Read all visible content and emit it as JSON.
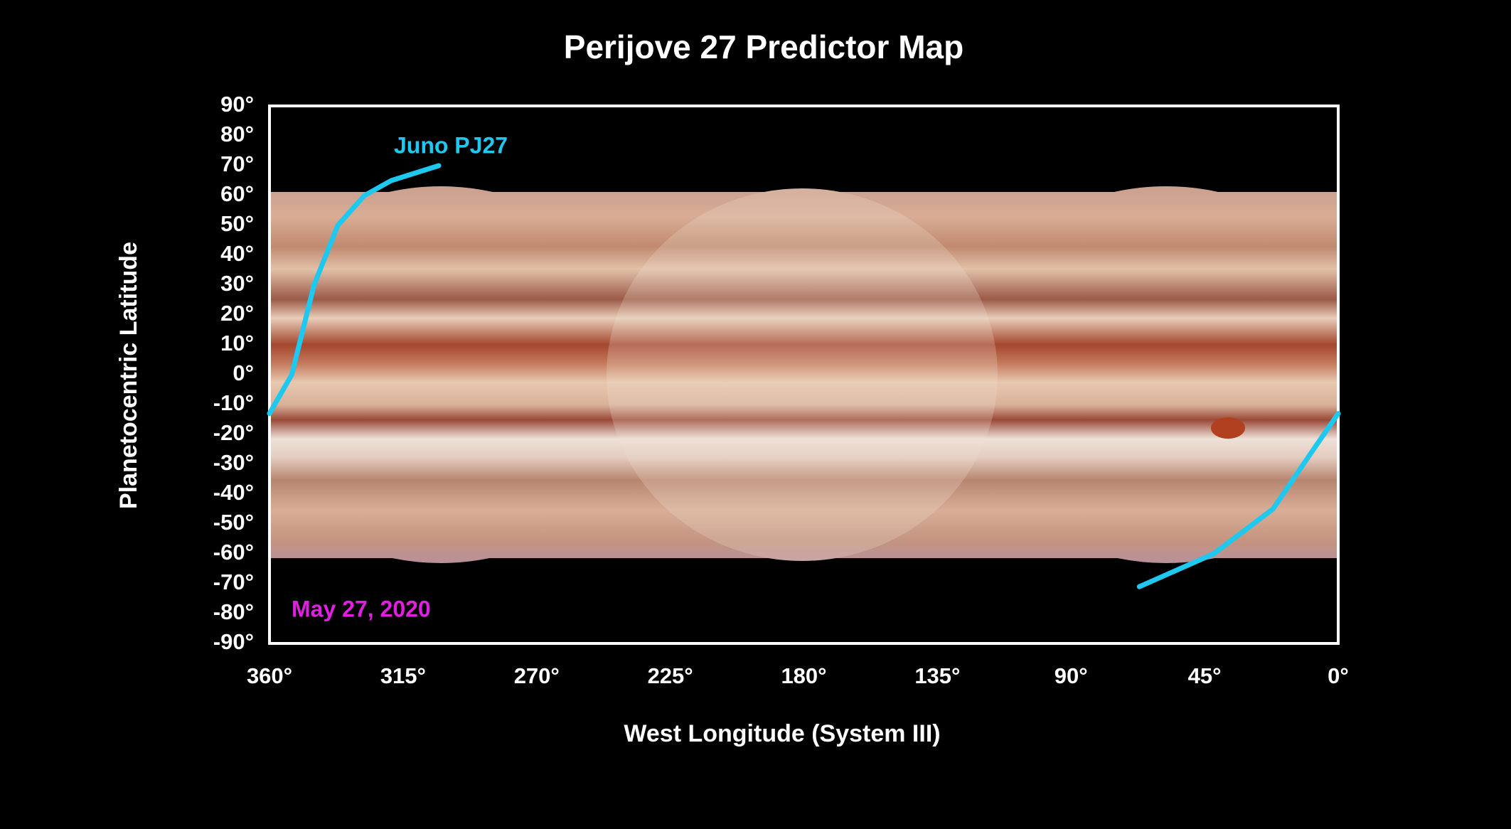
{
  "chart_data": {
    "type": "line",
    "title": "Perijove 27 Predictor Map",
    "x_label": "West Longitude (System III)",
    "y_label": "Planetocentric Latitude",
    "annotations": [
      "Juno PJ27",
      "May 27, 2020"
    ],
    "xlim": [
      360,
      0
    ],
    "ylim": [
      -90,
      90
    ],
    "xticks": [
      {
        "value": 360,
        "label": "360°"
      },
      {
        "value": 315,
        "label": "315°"
      },
      {
        "value": 270,
        "label": "270°"
      },
      {
        "value": 225,
        "label": "225°"
      },
      {
        "value": 180,
        "label": "180°"
      },
      {
        "value": 135,
        "label": "135°"
      },
      {
        "value": 90,
        "label": "90°"
      },
      {
        "value": 45,
        "label": "45°"
      },
      {
        "value": 0,
        "label": "0°"
      }
    ],
    "yticks": [
      {
        "value": 90,
        "label": "90°"
      },
      {
        "value": 80,
        "label": "80°"
      },
      {
        "value": 70,
        "label": "70°"
      },
      {
        "value": 60,
        "label": "60°"
      },
      {
        "value": 50,
        "label": "50°"
      },
      {
        "value": 40,
        "label": "40°"
      },
      {
        "value": 30,
        "label": "30°"
      },
      {
        "value": 20,
        "label": "20°"
      },
      {
        "value": 10,
        "label": "10°"
      },
      {
        "value": 0,
        "label": "0°"
      },
      {
        "value": -10,
        "label": "-10°"
      },
      {
        "value": -20,
        "label": "-20°"
      },
      {
        "value": -30,
        "label": "-30°"
      },
      {
        "value": -40,
        "label": "-40°"
      },
      {
        "value": -50,
        "label": "-50°"
      },
      {
        "value": -60,
        "label": "-60°"
      },
      {
        "value": -70,
        "label": "-70°"
      },
      {
        "value": -80,
        "label": "-80°"
      },
      {
        "value": -90,
        "label": "-90°"
      }
    ],
    "x": [
      360,
      352.5,
      345,
      337,
      328,
      319,
      303,
      null,
      0,
      9,
      22,
      42,
      67
    ],
    "series": [
      {
        "name": "Juno PJ27",
        "color": "#1ec8ee",
        "values": [
          -13,
          0,
          30,
          50,
          60,
          65,
          70,
          null,
          -13,
          -26,
          -45,
          -60,
          -71
        ]
      }
    ],
    "annotation_color": "#e020e0",
    "grid": false
  }
}
